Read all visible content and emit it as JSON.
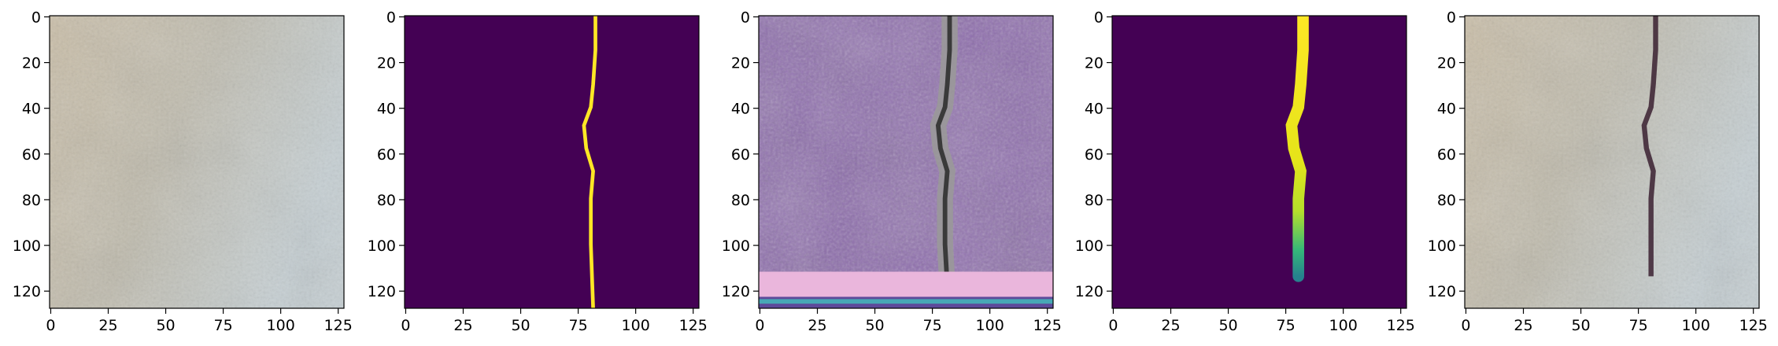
{
  "chart_data": [
    {
      "type": "image",
      "xlim": [
        -0.5,
        127.5
      ],
      "ylim": [
        127.5,
        -0.5
      ],
      "xticks": [
        0,
        25,
        50,
        75,
        100,
        125
      ],
      "yticks": [
        0,
        20,
        40,
        60,
        80,
        100,
        120
      ]
    },
    {
      "type": "image",
      "xlim": [
        -0.5,
        127.5
      ],
      "ylim": [
        127.5,
        -0.5
      ],
      "xticks": [
        0,
        25,
        50,
        75,
        100,
        125
      ],
      "yticks": [
        0,
        20,
        40,
        60,
        80,
        100,
        120
      ]
    },
    {
      "type": "image",
      "xlim": [
        -0.5,
        127.5
      ],
      "ylim": [
        127.5,
        -0.5
      ],
      "xticks": [
        0,
        25,
        50,
        75,
        100,
        125
      ],
      "yticks": [
        0,
        20,
        40,
        60,
        80,
        100,
        120
      ]
    },
    {
      "type": "image",
      "xlim": [
        -0.5,
        127.5
      ],
      "ylim": [
        127.5,
        -0.5
      ],
      "xticks": [
        0,
        25,
        50,
        75,
        100,
        125
      ],
      "yticks": [
        0,
        20,
        40,
        60,
        80,
        100,
        120
      ]
    },
    {
      "type": "image",
      "xlim": [
        -0.5,
        127.5
      ],
      "ylim": [
        127.5,
        -0.5
      ],
      "xticks": [
        0,
        25,
        50,
        75,
        100,
        125
      ],
      "yticks": [
        0,
        20,
        40,
        60,
        80,
        100,
        120
      ]
    }
  ]
}
